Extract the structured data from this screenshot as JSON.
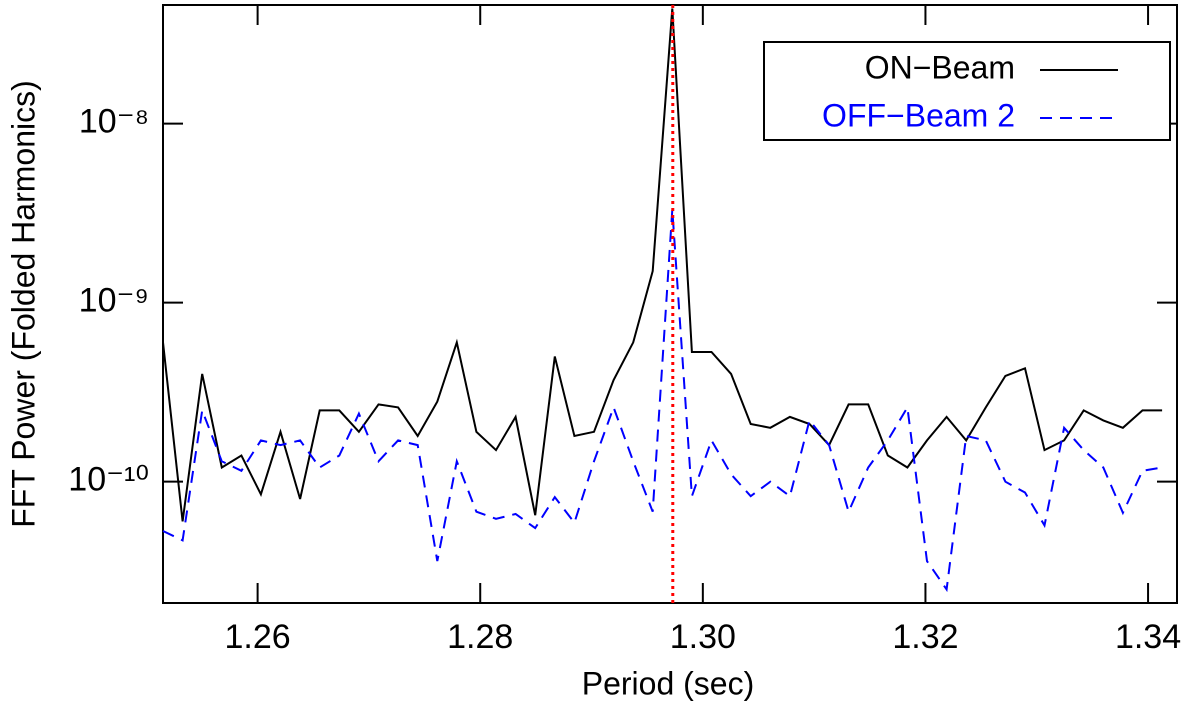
{
  "chart_data": {
    "type": "line",
    "x_label": "Period (sec)",
    "y_label": "FFT Power (Folded Harmonics)",
    "xlim": [
      1.2515,
      1.3426
    ],
    "xticks": [
      1.26,
      1.28,
      {
        "value": 1.3,
        "label": "1.30"
      },
      1.32,
      1.34
    ],
    "ylim": [
      2.1e-11,
      4.6e-08
    ],
    "ylog": true,
    "yticks": [
      {
        "value": 1e-10,
        "label": "10⁻¹⁰"
      },
      {
        "value": 1e-09,
        "label": "10⁻⁹"
      },
      {
        "value": 1e-08,
        "label": "10⁻⁸"
      }
    ],
    "legend": "upper right",
    "x": [
      1.2515,
      1.25326,
      1.25502,
      1.25678,
      1.25854,
      1.2603,
      1.26206,
      1.26382,
      1.26558,
      1.26734,
      1.2691,
      1.27086,
      1.27262,
      1.27438,
      1.27614,
      1.2779,
      1.27966,
      1.28142,
      1.28318,
      1.28494,
      1.2867,
      1.28846,
      1.29022,
      1.29198,
      1.29374,
      1.2955,
      1.29726,
      1.29902,
      1.30078,
      1.30254,
      1.3043,
      1.30606,
      1.30782,
      1.30958,
      1.31134,
      1.3131,
      1.31486,
      1.31662,
      1.31838,
      1.32014,
      1.3219,
      1.32366,
      1.32542,
      1.32718,
      1.32894,
      1.3307,
      1.33246,
      1.33422,
      1.33598,
      1.33774,
      1.3395,
      1.34126
    ],
    "series": [
      {
        "name": "ON−Beam",
        "color": "#000000",
        "dash": "solid",
        "values": [
          6e-10,
          6e-11,
          4e-10,
          1.2e-10,
          1.4e-10,
          8.5e-11,
          1.9e-10,
          8e-11,
          2.5e-10,
          2.5e-10,
          1.9e-10,
          2.7e-10,
          2.6e-10,
          1.8e-10,
          2.8e-10,
          6e-10,
          1.9e-10,
          1.5e-10,
          2.3e-10,
          6.5e-11,
          5e-10,
          1.8e-10,
          1.9e-10,
          3.7e-10,
          6e-10,
          1.5e-09,
          4.4e-08,
          5.3e-10,
          5.3e-10,
          4e-10,
          2.1e-10,
          2e-10,
          2.3e-10,
          2.1e-10,
          1.6e-10,
          2.7e-10,
          2.7e-10,
          1.4e-10,
          1.2e-10,
          1.7e-10,
          2.3e-10,
          1.7e-10,
          2.6e-10,
          3.9e-10,
          4.3e-10,
          1.5e-10,
          1.7e-10,
          2.5e-10,
          2.2e-10,
          2e-10,
          2.5e-10,
          2.5e-10
        ]
      },
      {
        "name": "OFF−Beam 2",
        "color": "#0000ff",
        "dash": "dashed",
        "values": [
          5.3e-11,
          4.7e-11,
          2.5e-10,
          1.3e-10,
          1.15e-10,
          1.7e-10,
          1.6e-10,
          1.7e-10,
          1.2e-10,
          1.4e-10,
          2.4e-10,
          1.3e-10,
          1.7e-10,
          1.6e-10,
          3.6e-11,
          1.3e-10,
          6.8e-11,
          6.2e-11,
          6.6e-11,
          5.5e-11,
          8.2e-11,
          5.9e-11,
          1.3e-10,
          2.6e-10,
          1.3e-10,
          6.8e-11,
          3.3e-09,
          8.3e-11,
          1.7e-10,
          1.1e-10,
          8.3e-11,
          1e-10,
          8.3e-11,
          2.2e-10,
          1.6e-10,
          6.8e-11,
          1.2e-10,
          1.7e-10,
          2.6e-10,
          3.6e-11,
          2.5e-11,
          1.8e-10,
          1.7e-10,
          1e-10,
          8.7e-11,
          5.7e-11,
          2e-10,
          1.5e-10,
          1.2e-10,
          6.7e-11,
          1.15e-10,
          1.2e-10
        ]
      }
    ],
    "vlines": [
      {
        "x": 1.2973,
        "color": "#ff0000",
        "style": "dotted"
      }
    ]
  }
}
